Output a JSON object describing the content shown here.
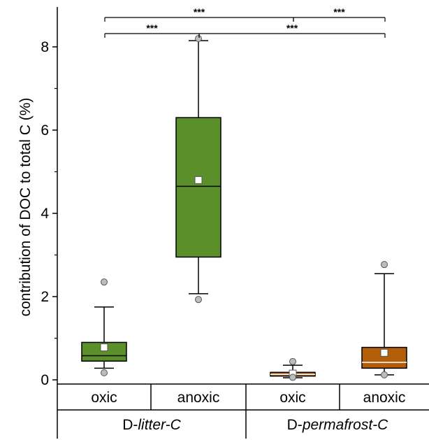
{
  "chart_data": {
    "type": "box",
    "ylabel": "contribution of DOC to total C (%)",
    "ylim": [
      -0.1,
      9.0
    ],
    "yticks": [
      "0",
      "2",
      "4",
      "6",
      "8"
    ],
    "yticks_values": [
      0,
      2,
      4,
      6,
      8
    ],
    "groups": [
      {
        "label": "D-",
        "label_italic": "litter-C",
        "categories": [
          "oxic",
          "anoxic"
        ]
      },
      {
        "label": "D-",
        "label_italic": "permafrost-C",
        "categories": [
          "oxic",
          "anoxic"
        ]
      }
    ],
    "boxes": [
      {
        "group": "D-litter-C",
        "category": "oxic",
        "whisker_low": 0.28,
        "q1": 0.45,
        "median": 0.58,
        "q3": 0.9,
        "whisker_high": 1.75,
        "mean": 0.78,
        "outliers": [
          2.35,
          0.17
        ],
        "color": "#5b8f29"
      },
      {
        "group": "D-litter-C",
        "category": "anoxic",
        "whisker_low": 2.07,
        "q1": 2.95,
        "median": 4.65,
        "q3": 6.3,
        "whisker_high": 8.15,
        "mean": 4.8,
        "outliers": [
          8.2,
          1.93
        ],
        "color": "#5b8f29"
      },
      {
        "group": "D-permafrost-C",
        "category": "oxic",
        "whisker_low": 0.05,
        "q1": 0.09,
        "median": 0.13,
        "q3": 0.18,
        "whisker_high": 0.35,
        "mean": 0.15,
        "outliers": [
          0.44,
          0.06
        ],
        "color": "#b35f0a"
      },
      {
        "group": "D-permafrost-C",
        "category": "anoxic",
        "whisker_low": 0.12,
        "q1": 0.28,
        "median": 0.42,
        "q3": 0.78,
        "whisker_high": 2.55,
        "mean": 0.65,
        "outliers": [
          2.77,
          0.12
        ],
        "color": "#b35f0a"
      }
    ],
    "significance": [
      {
        "from": 0,
        "to": 2,
        "label": "***",
        "level": 1
      },
      {
        "from": 2,
        "to": 3,
        "label": "***",
        "level": 1
      },
      {
        "from": 0,
        "to": 1,
        "label": "***",
        "level": 2
      },
      {
        "from": 1,
        "to": 3,
        "label": "***",
        "level": 2
      }
    ]
  }
}
